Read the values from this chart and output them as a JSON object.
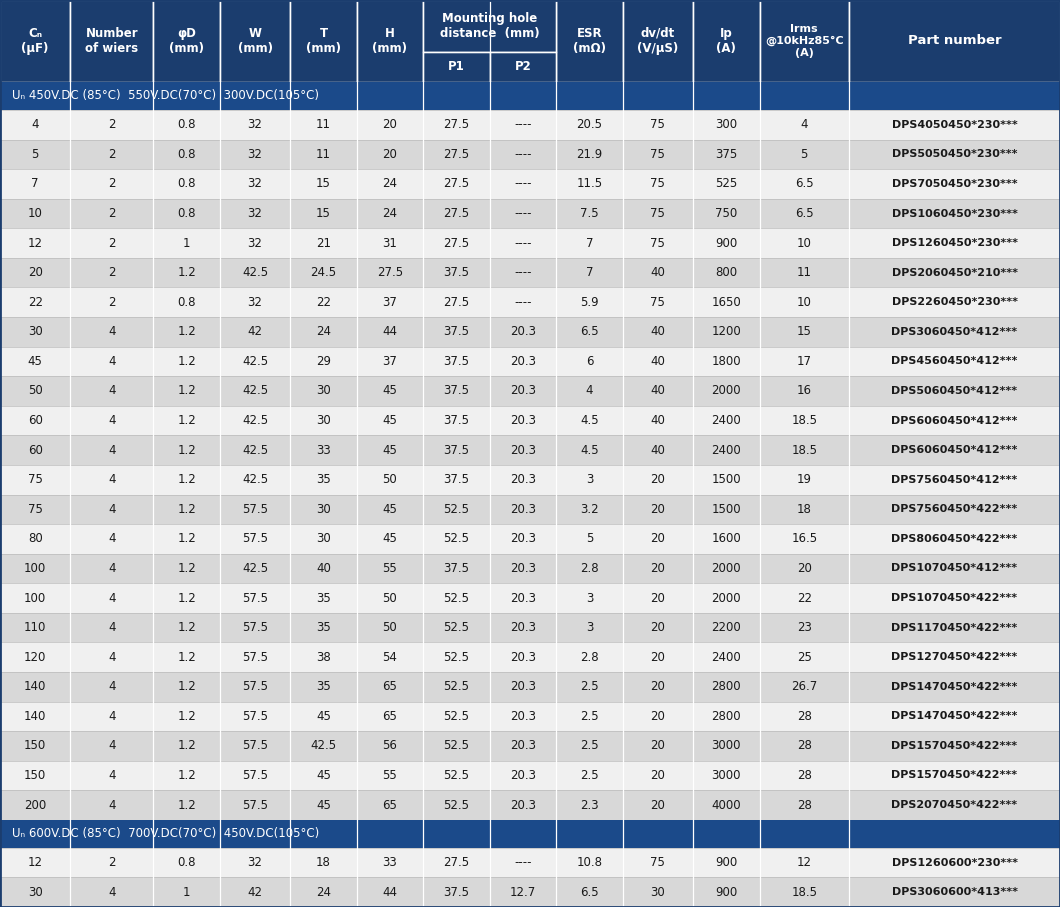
{
  "header_bg": "#1b3d6e",
  "header_text": "#ffffff",
  "row_light_bg": "#f0f0f0",
  "row_dark_bg": "#d8d8d8",
  "row_text": "#1a1a1a",
  "group_header_bg": "#1b4a8a",
  "group_header_text": "#ffffff",
  "border_color": "#ffffff",
  "outer_border_color": "#1b3d6e",
  "mounting_hole_label": "Mounting hole\ndistance  (mm)",
  "group1_label": "Uₙ 450V.DC (85°C)  550V.DC(70°C)  300V.DC(105°C)",
  "group2_label": "Uₙ 600V.DC (85°C)  700V.DC(70°C)  450V.DC(105°C)",
  "header_labels": {
    "0": "Cₙ\n(μF)",
    "1": "Number\nof wiers",
    "2": "φD\n(mm)",
    "3": "W\n(mm)",
    "4": "T\n(mm)",
    "5": "H\n(mm)",
    "8": "ESR\n(mΩ)",
    "9": "dv/dt\n(V/μS)",
    "10": "Ip\n(A)",
    "11": "Irms\n@10kHz85°C\n(A)",
    "12": "Part number"
  },
  "col_weights": [
    0.55,
    0.65,
    0.52,
    0.55,
    0.52,
    0.52,
    0.52,
    0.52,
    0.52,
    0.55,
    0.52,
    0.7,
    1.65
  ],
  "rows_group1": [
    [
      "4",
      "2",
      "0.8",
      "32",
      "11",
      "20",
      "27.5",
      "----",
      "20.5",
      "75",
      "300",
      "4",
      "DPS4050450*230***"
    ],
    [
      "5",
      "2",
      "0.8",
      "32",
      "11",
      "20",
      "27.5",
      "----",
      "21.9",
      "75",
      "375",
      "5",
      "DPS5050450*230***"
    ],
    [
      "7",
      "2",
      "0.8",
      "32",
      "15",
      "24",
      "27.5",
      "----",
      "11.5",
      "75",
      "525",
      "6.5",
      "DPS7050450*230***"
    ],
    [
      "10",
      "2",
      "0.8",
      "32",
      "15",
      "24",
      "27.5",
      "----",
      "7.5",
      "75",
      "750",
      "6.5",
      "DPS1060450*230***"
    ],
    [
      "12",
      "2",
      "1",
      "32",
      "21",
      "31",
      "27.5",
      "----",
      "7",
      "75",
      "900",
      "10",
      "DPS1260450*230***"
    ],
    [
      "20",
      "2",
      "1.2",
      "42.5",
      "24.5",
      "27.5",
      "37.5",
      "----",
      "7",
      "40",
      "800",
      "11",
      "DPS2060450*210***"
    ],
    [
      "22",
      "2",
      "0.8",
      "32",
      "22",
      "37",
      "27.5",
      "----",
      "5.9",
      "75",
      "1650",
      "10",
      "DPS2260450*230***"
    ],
    [
      "30",
      "4",
      "1.2",
      "42",
      "24",
      "44",
      "37.5",
      "20.3",
      "6.5",
      "40",
      "1200",
      "15",
      "DPS3060450*412***"
    ],
    [
      "45",
      "4",
      "1.2",
      "42.5",
      "29",
      "37",
      "37.5",
      "20.3",
      "6",
      "40",
      "1800",
      "17",
      "DPS4560450*412***"
    ],
    [
      "50",
      "4",
      "1.2",
      "42.5",
      "30",
      "45",
      "37.5",
      "20.3",
      "4",
      "40",
      "2000",
      "16",
      "DPS5060450*412***"
    ],
    [
      "60",
      "4",
      "1.2",
      "42.5",
      "30",
      "45",
      "37.5",
      "20.3",
      "4.5",
      "40",
      "2400",
      "18.5",
      "DPS6060450*412***"
    ],
    [
      "60",
      "4",
      "1.2",
      "42.5",
      "33",
      "45",
      "37.5",
      "20.3",
      "4.5",
      "40",
      "2400",
      "18.5",
      "DPS6060450*412***"
    ],
    [
      "75",
      "4",
      "1.2",
      "42.5",
      "35",
      "50",
      "37.5",
      "20.3",
      "3",
      "20",
      "1500",
      "19",
      "DPS7560450*412***"
    ],
    [
      "75",
      "4",
      "1.2",
      "57.5",
      "30",
      "45",
      "52.5",
      "20.3",
      "3.2",
      "20",
      "1500",
      "18",
      "DPS7560450*422***"
    ],
    [
      "80",
      "4",
      "1.2",
      "57.5",
      "30",
      "45",
      "52.5",
      "20.3",
      "5",
      "20",
      "1600",
      "16.5",
      "DPS8060450*422***"
    ],
    [
      "100",
      "4",
      "1.2",
      "42.5",
      "40",
      "55",
      "37.5",
      "20.3",
      "2.8",
      "20",
      "2000",
      "20",
      "DPS1070450*412***"
    ],
    [
      "100",
      "4",
      "1.2",
      "57.5",
      "35",
      "50",
      "52.5",
      "20.3",
      "3",
      "20",
      "2000",
      "22",
      "DPS1070450*422***"
    ],
    [
      "110",
      "4",
      "1.2",
      "57.5",
      "35",
      "50",
      "52.5",
      "20.3",
      "3",
      "20",
      "2200",
      "23",
      "DPS1170450*422***"
    ],
    [
      "120",
      "4",
      "1.2",
      "57.5",
      "38",
      "54",
      "52.5",
      "20.3",
      "2.8",
      "20",
      "2400",
      "25",
      "DPS1270450*422***"
    ],
    [
      "140",
      "4",
      "1.2",
      "57.5",
      "35",
      "65",
      "52.5",
      "20.3",
      "2.5",
      "20",
      "2800",
      "26.7",
      "DPS1470450*422***"
    ],
    [
      "140",
      "4",
      "1.2",
      "57.5",
      "45",
      "65",
      "52.5",
      "20.3",
      "2.5",
      "20",
      "2800",
      "28",
      "DPS1470450*422***"
    ],
    [
      "150",
      "4",
      "1.2",
      "57.5",
      "42.5",
      "56",
      "52.5",
      "20.3",
      "2.5",
      "20",
      "3000",
      "28",
      "DPS1570450*422***"
    ],
    [
      "150",
      "4",
      "1.2",
      "57.5",
      "45",
      "55",
      "52.5",
      "20.3",
      "2.5",
      "20",
      "3000",
      "28",
      "DPS1570450*422***"
    ],
    [
      "200",
      "4",
      "1.2",
      "57.5",
      "45",
      "65",
      "52.5",
      "20.3",
      "2.3",
      "20",
      "4000",
      "28",
      "DPS2070450*422***"
    ]
  ],
  "rows_group2": [
    [
      "12",
      "2",
      "0.8",
      "32",
      "18",
      "33",
      "27.5",
      "----",
      "10.8",
      "75",
      "900",
      "12",
      "DPS1260600*230***"
    ],
    [
      "30",
      "4",
      "1",
      "42",
      "24",
      "44",
      "37.5",
      "12.7",
      "6.5",
      "30",
      "900",
      "18.5",
      "DPS3060600*413***"
    ]
  ]
}
